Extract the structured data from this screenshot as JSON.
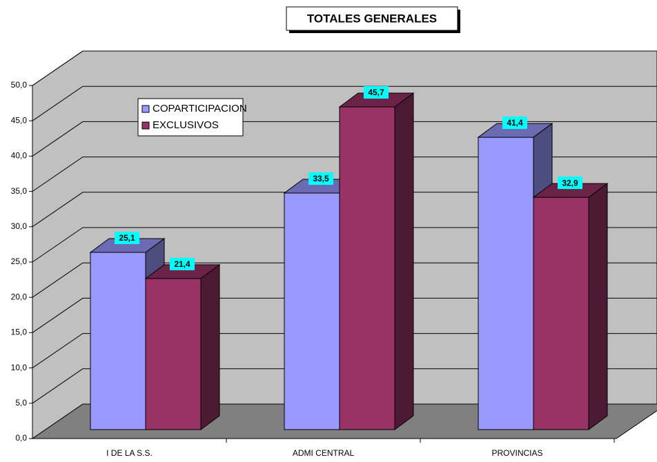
{
  "chart_data": {
    "type": "bar3d",
    "title": "TOTALES GENERALES",
    "categories": [
      "I DE LA S.S.",
      "ADMI CENTRAL",
      "PROVINCIAS"
    ],
    "series": [
      {
        "name": "COPARTICIPACION",
        "color": "#9999ff",
        "values": [
          25.1,
          33.5,
          41.4
        ],
        "value_labels": [
          "25,1",
          "33,5",
          "41,4"
        ]
      },
      {
        "name": "EXCLUSIVOS",
        "color": "#993366",
        "values": [
          21.4,
          45.7,
          32.9
        ],
        "value_labels": [
          "21,4",
          "45,7",
          "32,9"
        ]
      }
    ],
    "ylim": [
      0,
      50
    ],
    "yticks": [
      {
        "value": 0,
        "label": "0,0"
      },
      {
        "value": 5,
        "label": "5,0"
      },
      {
        "value": 10,
        "label": "10,0"
      },
      {
        "value": 15,
        "label": "15,0"
      },
      {
        "value": 20,
        "label": "20,0"
      },
      {
        "value": 25,
        "label": "25,0"
      },
      {
        "value": 30,
        "label": "30,0"
      },
      {
        "value": 35,
        "label": "35,0"
      },
      {
        "value": 40,
        "label": "40,0"
      },
      {
        "value": 45,
        "label": "45,0"
      },
      {
        "value": 50,
        "label": "50,0"
      }
    ],
    "grid": true,
    "legend": "upper left"
  }
}
